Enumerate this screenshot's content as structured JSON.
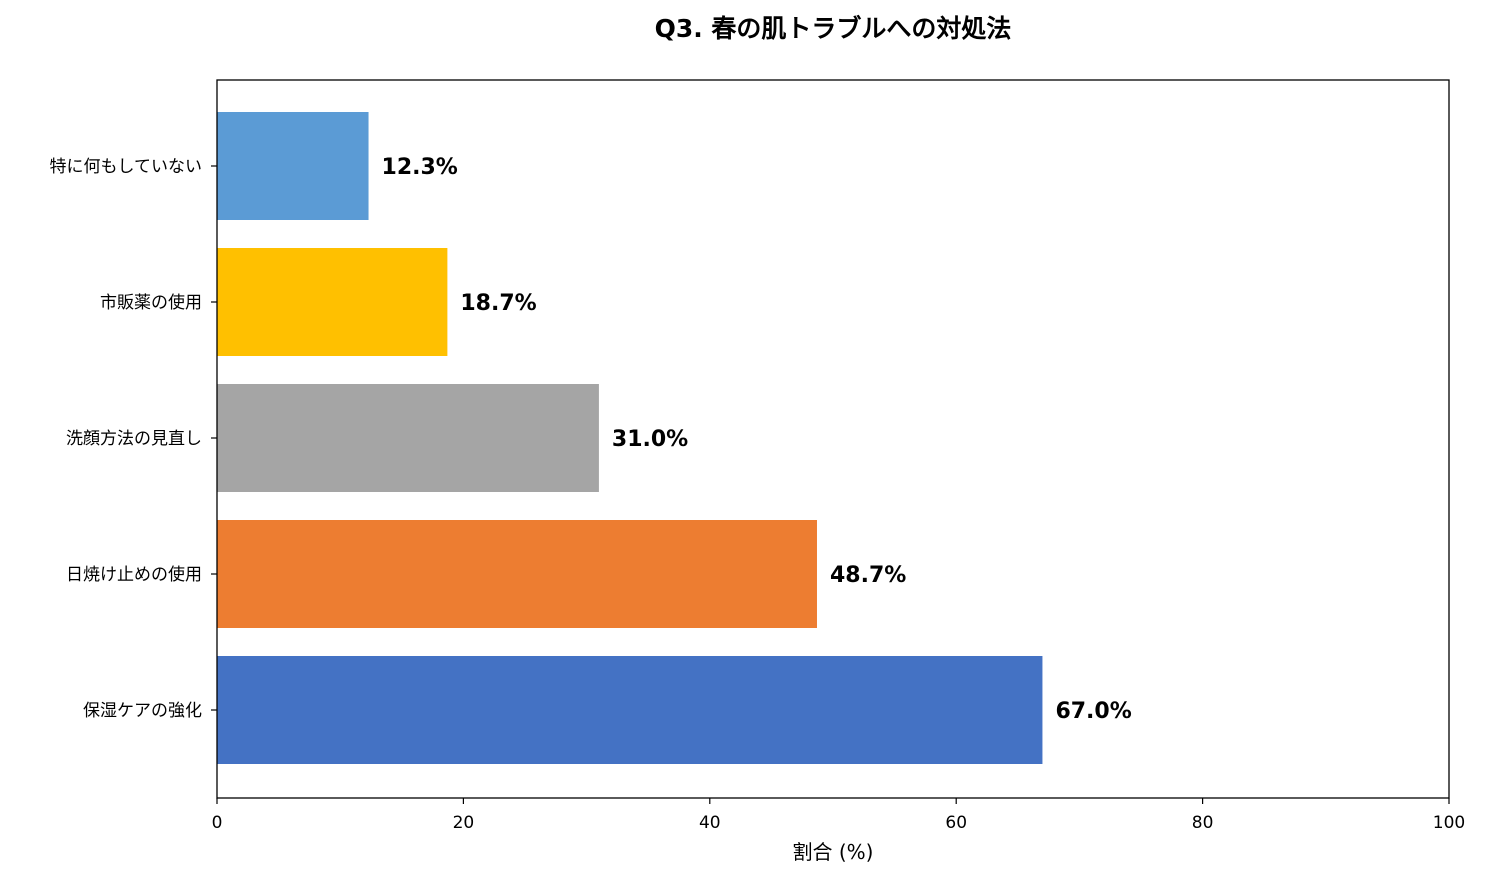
{
  "chart_data": {
    "type": "bar",
    "orientation": "horizontal",
    "title": "Q3. 春の肌トラブルへの対処法",
    "xlabel": "割合 (%)",
    "ylabel": "",
    "xlim": [
      0,
      100
    ],
    "xticks": [
      "0",
      "20",
      "40",
      "60",
      "80",
      "100"
    ],
    "grid": false,
    "categories": [
      "保湿ケアの強化",
      "日焼け止めの使用",
      "洗顔方法の見直し",
      "市販薬の使用",
      "特に何もしていない"
    ],
    "values": [
      67.0,
      48.7,
      31.0,
      18.7,
      12.3
    ],
    "data_labels": [
      "67.0%",
      "48.7%",
      "31.0%",
      "18.7%",
      "12.3%"
    ],
    "colors": [
      "#4472C4",
      "#ED7D31",
      "#A5A5A5",
      "#FFC000",
      "#5B9BD5"
    ]
  }
}
